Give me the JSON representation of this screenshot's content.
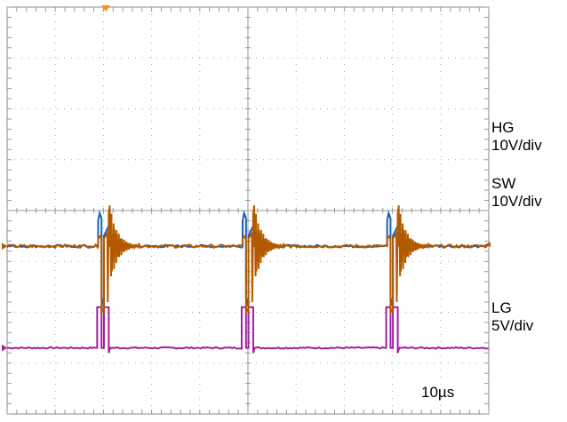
{
  "chart_data": {
    "type": "line",
    "title": "",
    "timebase": "10µs",
    "grid": "on",
    "x_divisions": 10,
    "y_divisions": 8,
    "xlim_us": [
      0,
      100
    ],
    "series": [
      {
        "key": "sw",
        "name_line1": "SW",
        "name_line2": "10V/div",
        "color": "#b35a00",
        "baseline_div": 3.3,
        "x_us": [
          0,
          0.5,
          0.5,
          0.6,
          0.6,
          0.4,
          0.4,
          0.58,
          0.7
        ],
        "y_div": [
          3.3,
          3.3,
          2.0,
          2.0,
          3.4,
          3.4,
          4.0,
          3.6,
          3.3
        ]
      },
      {
        "key": "hg",
        "name_line1": "HG",
        "name_line2": "10V/div",
        "color": "#1a5fb4",
        "peak_div": 3.95
      },
      {
        "key": "lg",
        "name_line1": "LG",
        "name_line2": "5V/div",
        "color": "#a020a0",
        "baseline_div": 1.3,
        "pulse_high_div": 2.1
      }
    ],
    "switching_cycles_us": [
      20.5,
      50.5,
      80.5
    ],
    "legend_position": "right"
  }
}
